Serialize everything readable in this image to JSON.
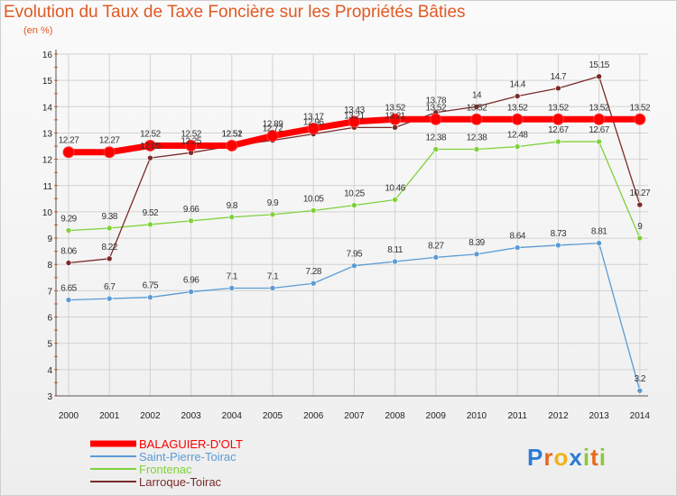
{
  "chart_data": {
    "type": "line",
    "title": "Evolution du Taux de Taxe Foncière sur les Propriétés Bâties",
    "ylabel": "(en %)",
    "ylim": [
      3,
      16
    ],
    "yticks": [
      3,
      4,
      5,
      6,
      7,
      8,
      9,
      10,
      11,
      12,
      13,
      14,
      15,
      16
    ],
    "x": [
      "2000",
      "2001",
      "2002",
      "2003",
      "2004",
      "2005",
      "2006",
      "2007",
      "2008",
      "2009",
      "2010",
      "2011",
      "2012",
      "2013",
      "2014"
    ],
    "series": [
      {
        "name": "BALAGUIER-D'OLT",
        "color": "#ff0000",
        "values": [
          12.27,
          12.27,
          12.52,
          12.52,
          12.52,
          12.89,
          13.17,
          13.43,
          13.52,
          13.52,
          13.52,
          13.52,
          13.52,
          13.52,
          13.52
        ],
        "labels": [
          "12.27",
          "12.27",
          "12.52",
          "12.52",
          "12.52",
          "12.89",
          "13.17",
          "13.43",
          "13.52",
          "13.52",
          "13.52",
          "13.52",
          "13.52",
          "13.52",
          "13.52"
        ]
      },
      {
        "name": "Saint-Pierre-Toirac",
        "color": "#5a9bd4",
        "values": [
          6.65,
          6.7,
          6.75,
          6.96,
          7.1,
          7.1,
          7.28,
          7.95,
          8.11,
          8.27,
          8.39,
          8.64,
          8.73,
          8.81,
          3.2
        ],
        "labels": [
          "6.65",
          "6.7",
          "6.75",
          "6.96",
          "7.1",
          "7.1",
          "7.28",
          "7.95",
          "8.11",
          "8.27",
          "8.39",
          "8.64",
          "8.73",
          "8.81",
          "3.2"
        ]
      },
      {
        "name": "Frontenac",
        "color": "#7fd13b",
        "values": [
          9.29,
          9.38,
          9.52,
          9.66,
          9.8,
          9.9,
          10.05,
          10.25,
          10.46,
          12.38,
          12.38,
          12.48,
          12.67,
          12.67,
          9
        ],
        "labels": [
          "9.29",
          "9.38",
          "9.52",
          "9.66",
          "9.8",
          "9.9",
          "10.05",
          "10.25",
          "10.46",
          "12.38",
          "12.38",
          "12.48",
          "12.67",
          "12.67",
          "9"
        ]
      },
      {
        "name": "Larroque-Toirac",
        "color": "#7a2a2a",
        "values": [
          8.06,
          8.22,
          12.05,
          12.25,
          12.51,
          12.72,
          12.96,
          13.21,
          13.21,
          13.78,
          14,
          14.4,
          14.7,
          15.15,
          10.27
        ],
        "labels": [
          "8.06",
          "8.22",
          "12.05",
          "12.25",
          "12.51",
          "12.72",
          "12.96",
          "13.21",
          "13.21",
          "13.78",
          "14",
          "14.4",
          "14.7",
          "15.15",
          "10.27"
        ]
      }
    ],
    "legend_position": "bottom-left"
  },
  "brand": {
    "letters": [
      "P",
      "r",
      "o",
      "x",
      "i",
      "t",
      "i"
    ],
    "colors": [
      "#2e7bd6",
      "#e8691d",
      "#f0b21c",
      "#2e7bd6",
      "#8fc63f",
      "#e8691d",
      "#8fc63f"
    ]
  }
}
